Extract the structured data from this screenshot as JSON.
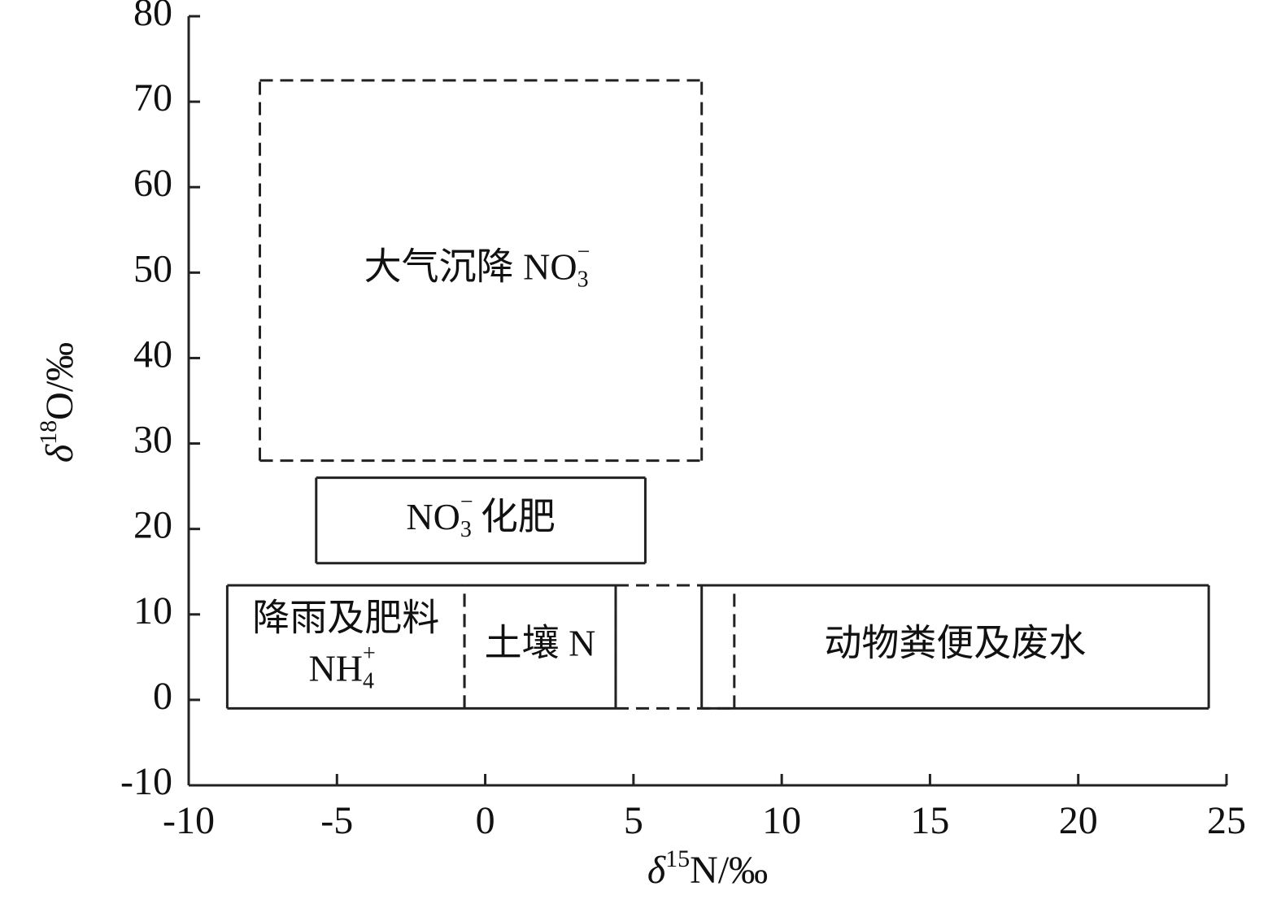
{
  "chart_data": {
    "type": "regions",
    "x_label": {
      "prefix": "δ",
      "sup": "15",
      "main": "N/‰"
    },
    "y_label": {
      "prefix": "δ",
      "sup": "18",
      "main": "O/‰"
    },
    "xlim": [
      -10,
      25
    ],
    "xticks": [
      -10,
      -5,
      0,
      5,
      10,
      15,
      20,
      25
    ],
    "ylim": [
      -10,
      80
    ],
    "yticks": [
      -10,
      0,
      10,
      20,
      30,
      40,
      50,
      60,
      70,
      80
    ],
    "color": "#222",
    "regions": [
      {
        "x": [
          4.4,
          8.4
        ],
        "y": [
          -1,
          13.4
        ],
        "dashed_sides": [
          "left",
          "right",
          "top",
          "bottom"
        ],
        "label_lines": []
      },
      {
        "x": [
          -7.6,
          7.3
        ],
        "y": [
          28,
          72.5
        ],
        "dashed_sides": [
          "left",
          "right",
          "top",
          "bottom"
        ],
        "label_lines": [
          [
            {
              "text": "大气沉降 NO"
            },
            {
              "sub": "3",
              "sup": "−"
            }
          ]
        ]
      },
      {
        "x": [
          -5.7,
          5.4
        ],
        "y": [
          16,
          26
        ],
        "dashed_sides": [],
        "label_lines": [
          [
            {
              "text": "NO"
            },
            {
              "sub": "3",
              "sup": "−"
            },
            {
              "text": "化肥"
            }
          ]
        ]
      },
      {
        "x": [
          -8.7,
          -0.7
        ],
        "y": [
          -1,
          13.4
        ],
        "dashed_sides": [
          "right"
        ],
        "label_lines": [
          [
            {
              "text": "降雨及肥料"
            }
          ],
          [
            {
              "text": "NH"
            },
            {
              "sub": "4",
              "sup": "+"
            }
          ]
        ]
      },
      {
        "x": [
          -0.7,
          4.4
        ],
        "y": [
          -1,
          13.4
        ],
        "dashed_sides": [
          "left"
        ],
        "label_lines": [
          [
            {
              "text": "土壤 N"
            }
          ]
        ]
      },
      {
        "x": [
          7.3,
          24.4
        ],
        "y": [
          -1,
          13.4
        ],
        "dashed_sides": [],
        "label_lines": [
          [
            {
              "text": "动物粪便及废水"
            }
          ]
        ]
      }
    ]
  }
}
